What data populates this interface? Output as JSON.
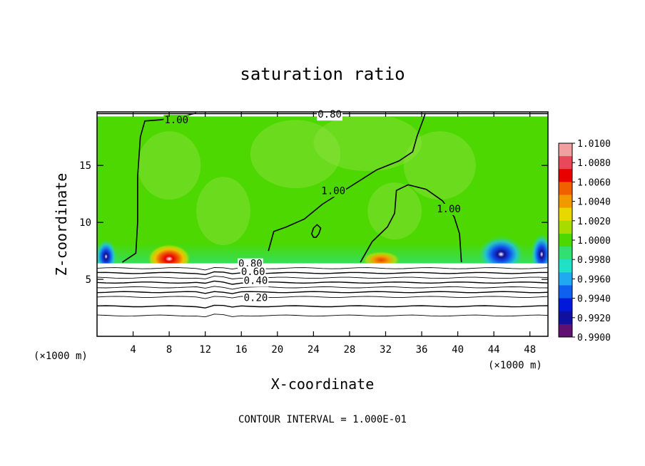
{
  "chart_data": {
    "type": "heatmap",
    "title": "saturation ratio",
    "xlabel": "X-coordinate",
    "ylabel": "Z-coordinate",
    "x_unit": "(×1000 m)",
    "y_unit": "(×1000 m)",
    "xlim": [
      0,
      50
    ],
    "ylim": [
      0,
      19.7
    ],
    "x_ticks": [
      4,
      8,
      12,
      16,
      20,
      24,
      28,
      32,
      36,
      40,
      44,
      48
    ],
    "y_ticks": [
      5,
      10,
      15
    ],
    "footer": "CONTOUR INTERVAL = 1.000E-01",
    "colorbar": {
      "min": 0.99,
      "max": 1.01,
      "tick_labels": [
        "1.0100",
        "1.0080",
        "1.0060",
        "1.0040",
        "1.0020",
        "1.0000",
        "0.9980",
        "0.9960",
        "0.9940",
        "0.9920",
        "0.9900"
      ],
      "colors": [
        "#f0a0a0",
        "#e8485a",
        "#e80000",
        "#f06000",
        "#f09a00",
        "#e8d800",
        "#a8dc00",
        "#4cd800",
        "#30e070",
        "#20e0c8",
        "#20a8f0",
        "#1060f0",
        "#0018d8",
        "#1010a0",
        "#601070"
      ]
    },
    "background_value": 1.0,
    "contour_labels": [
      {
        "text": "1.00",
        "x": 8.8,
        "y": 19.0
      },
      {
        "text": "0.80",
        "x": 25.8,
        "y": 19.5
      },
      {
        "text": "1.00",
        "x": 26.2,
        "y": 12.8
      },
      {
        "text": "1.00",
        "x": 39.0,
        "y": 11.2
      },
      {
        "text": "0.80",
        "x": 17.0,
        "y": 6.4
      },
      {
        "text": "0.60",
        "x": 17.3,
        "y": 5.7
      },
      {
        "text": "0.40",
        "x": 17.6,
        "y": 4.9
      },
      {
        "text": "0.20",
        "x": 17.6,
        "y": 3.4
      }
    ],
    "boundary_layer_top": 6.4,
    "subsaturated_contour_levels": [
      0.9,
      0.8,
      0.7,
      0.6,
      0.5,
      0.4,
      0.3,
      0.2,
      0.1
    ],
    "contour_1_00": [
      [
        [
          2.8,
          6.5
        ],
        [
          4.3,
          7.3
        ],
        [
          4.5,
          10.0
        ],
        [
          4.5,
          14.0
        ],
        [
          4.8,
          17.5
        ],
        [
          5.3,
          18.9
        ],
        [
          7.0,
          19.0
        ],
        [
          9.5,
          19.3
        ],
        [
          11.0,
          19.6
        ]
      ],
      [
        [
          19.0,
          7.5
        ],
        [
          19.6,
          9.2
        ],
        [
          21.0,
          9.6
        ],
        [
          23.0,
          10.3
        ],
        [
          25.0,
          11.6
        ],
        [
          27.0,
          12.6
        ],
        [
          29.0,
          13.6
        ],
        [
          31.0,
          14.6
        ],
        [
          33.5,
          15.4
        ],
        [
          35.0,
          16.2
        ],
        [
          35.5,
          17.6
        ],
        [
          36.2,
          19.1
        ],
        [
          36.4,
          19.6
        ]
      ],
      [
        [
          29.2,
          6.5
        ],
        [
          30.5,
          8.3
        ],
        [
          32.2,
          9.6
        ],
        [
          33.0,
          10.8
        ],
        [
          33.2,
          12.8
        ],
        [
          34.5,
          13.3
        ],
        [
          36.5,
          12.9
        ],
        [
          38.3,
          11.9
        ],
        [
          39.6,
          10.5
        ],
        [
          40.2,
          9.0
        ],
        [
          40.4,
          6.5
        ]
      ],
      [
        [
          24.6,
          9.0
        ],
        [
          24.3,
          8.7
        ],
        [
          24.0,
          8.7
        ],
        [
          23.8,
          9.0
        ],
        [
          24.0,
          9.5
        ],
        [
          24.4,
          9.8
        ],
        [
          24.8,
          9.5
        ],
        [
          24.6,
          9.0
        ]
      ]
    ],
    "hotspots": [
      {
        "x": 8.0,
        "z": 6.8,
        "rx": 2.4,
        "rz": 1.3,
        "value": 1.0095
      },
      {
        "x": 31.5,
        "z": 6.7,
        "rx": 2.2,
        "rz": 0.8,
        "value": 1.0055
      },
      {
        "x": 1.0,
        "z": 7.0,
        "rx": 1.2,
        "rz": 1.5,
        "value": 0.9915
      },
      {
        "x": 44.8,
        "z": 7.2,
        "rx": 2.5,
        "rz": 1.6,
        "value": 0.9925
      },
      {
        "x": 49.3,
        "z": 7.2,
        "rx": 1.2,
        "rz": 1.8,
        "value": 0.9935
      }
    ]
  }
}
